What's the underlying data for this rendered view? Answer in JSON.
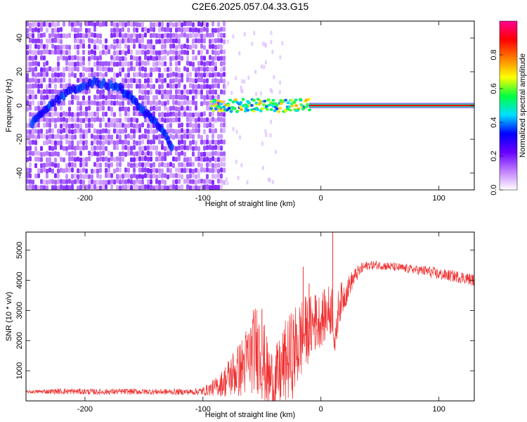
{
  "title": "C2E6.2025.057.04.33.G15",
  "chart_data": [
    {
      "type": "heatmap",
      "xlabel": "Height of straight line (km)",
      "ylabel": "Frequency (Hz)",
      "xlim": [
        -250,
        130
      ],
      "ylim": [
        -50,
        50
      ],
      "xticks": [
        -200,
        -100,
        0,
        100
      ],
      "yticks": [
        -40,
        -20,
        0,
        20,
        40
      ],
      "colorbar": {
        "label": "Normalized spectral amplitude",
        "range": [
          0,
          1
        ],
        "ticks": [
          "0.0",
          "0.2",
          "0.4",
          "0.6",
          "0.8"
        ],
        "colors": [
          "#ffffff",
          "#c080ff",
          "#6a00ff",
          "#0000ff",
          "#00e0ff",
          "#00ff40",
          "#ffff00",
          "#ff8000",
          "#ff0000",
          "#ff0090"
        ]
      },
      "features": {
        "noise_region_x": [
          -250,
          -83
        ],
        "noise_level": 0.15,
        "arc": [
          [
            -245,
            -10
          ],
          [
            -230,
            0
          ],
          [
            -210,
            10
          ],
          [
            -190,
            14
          ],
          [
            -170,
            10
          ],
          [
            -155,
            0
          ],
          [
            -140,
            -10
          ],
          [
            -125,
            -25
          ]
        ],
        "arc_level": 0.3,
        "signal_line_frequency": 0,
        "signal_noisy_x": [
          -93,
          -10
        ],
        "signal_clean_x": [
          -10,
          130
        ]
      }
    },
    {
      "type": "line",
      "xlabel": "Height of straight line (km)",
      "ylabel": "SNR (10 * v/v)",
      "xlim": [
        -250,
        130
      ],
      "ylim": [
        0,
        5600
      ],
      "xticks": [
        -200,
        -100,
        0,
        100
      ],
      "yticks": [
        1000,
        2000,
        3000,
        4000,
        5000
      ],
      "color": "#f03030",
      "x": [
        -250,
        -220,
        -190,
        -160,
        -130,
        -110,
        -100,
        -95,
        -90,
        -85,
        -80,
        -75,
        -70,
        -65,
        -60,
        -55,
        -50,
        -45,
        -40,
        -35,
        -30,
        -25,
        -20,
        -15,
        -10,
        -5,
        0,
        5,
        10,
        12,
        15,
        20,
        25,
        30,
        35,
        40,
        45,
        50,
        60,
        70,
        80,
        90,
        100,
        110,
        120,
        130
      ],
      "y": [
        300,
        320,
        300,
        310,
        300,
        300,
        320,
        380,
        450,
        550,
        700,
        900,
        1000,
        1200,
        1500,
        1800,
        1500,
        800,
        600,
        900,
        1300,
        1500,
        1800,
        2200,
        2400,
        2600,
        2700,
        2900,
        3100,
        1700,
        3200,
        3500,
        3900,
        4200,
        4400,
        4500,
        4500,
        4500,
        4450,
        4400,
        4350,
        4300,
        4200,
        4150,
        4100,
        4000
      ],
      "band": [
        50,
        100,
        100,
        100,
        100,
        100,
        150,
        200,
        300,
        400,
        600,
        800,
        900,
        1100,
        1300,
        1500,
        1500,
        1200,
        1100,
        1200,
        1400,
        1500,
        1500,
        1300,
        1100,
        1000,
        900,
        900,
        900,
        500,
        700,
        500,
        350,
        250,
        200,
        150,
        150,
        150,
        150,
        150,
        150,
        200,
        200,
        200,
        200,
        200
      ],
      "spikes": [
        [
          -50,
          3050
        ],
        [
          -15,
          4450
        ],
        [
          -10,
          3900
        ],
        [
          -5,
          3500
        ],
        [
          10,
          5600
        ]
      ]
    }
  ]
}
